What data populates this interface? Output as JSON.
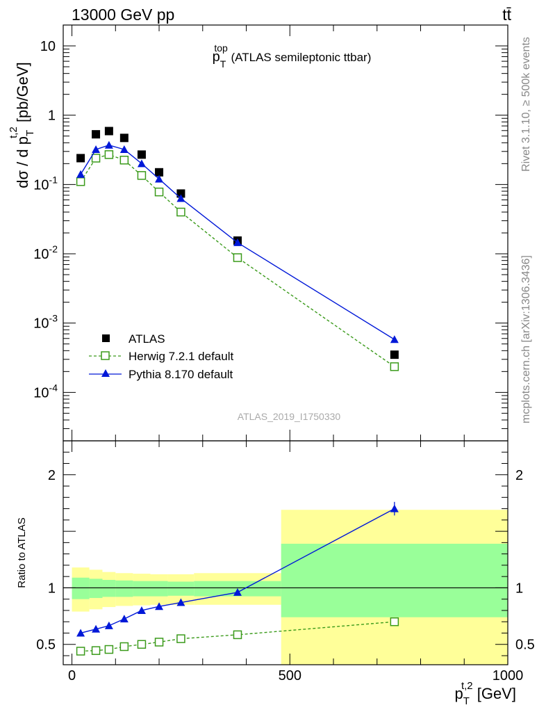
{
  "header": {
    "energy_label": "13000 GeV pp",
    "process_label": "tt̄"
  },
  "side_labels": {
    "rivet": "Rivet 3.1.10, ≥ 500k events",
    "mcplots": "mcplots.cern.ch [arXiv:1306.3436]"
  },
  "watermark": "ATLAS_2019_I1750330",
  "chart_data": [
    {
      "type": "scatter",
      "panel": "main",
      "title": {
        "p": "p",
        "sub": "T",
        "sup": "top",
        "rest": " (ATLAS semileptonic ttbar)"
      },
      "ylabel": {
        "prefix": "dσ / d p",
        "sub": "T",
        "sup": "t,2",
        "suffix": " [pb/GeV]"
      },
      "yscale": "log",
      "ylim": [
        2e-05,
        20
      ],
      "xlim": [
        -20,
        1000
      ],
      "ytick_labels": [
        {
          "value": 10,
          "base": "10",
          "exp": ""
        },
        {
          "value": 1,
          "base": "1",
          "exp": ""
        },
        {
          "value": 0.1,
          "base": "10",
          "exp": "-1"
        },
        {
          "value": 0.01,
          "base": "10",
          "exp": "-2"
        },
        {
          "value": 0.001,
          "base": "10",
          "exp": "-3"
        },
        {
          "value": 0.0001,
          "base": "10",
          "exp": "-4"
        }
      ],
      "legend_position": "bottom-left",
      "series": [
        {
          "name": "ATLAS",
          "marker": "square",
          "color": "#000000",
          "line": false,
          "x": [
            20,
            55,
            85,
            120,
            160,
            200,
            250,
            380,
            740
          ],
          "y": [
            0.24,
            0.53,
            0.59,
            0.47,
            0.27,
            0.15,
            0.074,
            0.0155,
            0.00035
          ]
        },
        {
          "name": "Herwig 7.2.1 default",
          "marker": "open-square",
          "color": "#3a9a1a",
          "line": "dashed",
          "x": [
            20,
            55,
            85,
            120,
            160,
            200,
            250,
            380,
            740
          ],
          "y": [
            0.11,
            0.24,
            0.27,
            0.225,
            0.135,
            0.078,
            0.04,
            0.0088,
            0.000235
          ]
        },
        {
          "name": "Pythia 8.170 default",
          "marker": "triangle",
          "color": "#0018d8",
          "line": "solid",
          "x": [
            20,
            55,
            85,
            120,
            160,
            200,
            250,
            380,
            740
          ],
          "y": [
            0.14,
            0.32,
            0.37,
            0.32,
            0.2,
            0.12,
            0.063,
            0.0145,
            0.00058
          ]
        }
      ]
    },
    {
      "type": "scatter",
      "panel": "ratio",
      "ylabel": "Ratio to ATLAS",
      "xlabel": {
        "p": "p",
        "sub": "T",
        "sup": "t,2",
        "suffix": " [GeV]"
      },
      "xlim": [
        -20,
        1000
      ],
      "ylim": [
        0.32,
        2.3
      ],
      "xtick_labels": [
        {
          "value": 0,
          "label": "0"
        },
        {
          "value": 500,
          "label": "500"
        },
        {
          "value": 1000,
          "label": "1000"
        }
      ],
      "ytick_labels": [
        {
          "value": 0.5,
          "label": "0.5"
        },
        {
          "value": 1,
          "label": "1"
        },
        {
          "value": 2,
          "label": "2"
        }
      ],
      "uncertainty_bands": [
        {
          "x0": 0,
          "x1": 40,
          "yellow": [
            0.79,
            1.18
          ],
          "green": [
            0.9,
            1.09
          ]
        },
        {
          "x0": 40,
          "x1": 70,
          "yellow": [
            0.81,
            1.16
          ],
          "green": [
            0.91,
            1.08
          ]
        },
        {
          "x0": 70,
          "x1": 100,
          "yellow": [
            0.83,
            1.14
          ],
          "green": [
            0.92,
            1.07
          ]
        },
        {
          "x0": 100,
          "x1": 140,
          "yellow": [
            0.84,
            1.13
          ],
          "green": [
            0.92,
            1.065
          ]
        },
        {
          "x0": 140,
          "x1": 180,
          "yellow": [
            0.845,
            1.125
          ],
          "green": [
            0.925,
            1.06
          ]
        },
        {
          "x0": 180,
          "x1": 220,
          "yellow": [
            0.85,
            1.12
          ],
          "green": [
            0.925,
            1.06
          ]
        },
        {
          "x0": 220,
          "x1": 280,
          "yellow": [
            0.85,
            1.12
          ],
          "green": [
            0.93,
            1.055
          ]
        },
        {
          "x0": 280,
          "x1": 480,
          "yellow": [
            0.85,
            1.13
          ],
          "green": [
            0.925,
            1.06
          ]
        },
        {
          "x0": 480,
          "x1": 1000,
          "yellow": [
            0.32,
            1.69
          ],
          "green": [
            0.74,
            1.39
          ]
        }
      ],
      "series": [
        {
          "name": "Herwig 7.2.1 default",
          "marker": "open-square",
          "color": "#3a9a1a",
          "line": "dashed",
          "x": [
            20,
            55,
            85,
            120,
            160,
            200,
            250,
            380,
            740
          ],
          "y": [
            0.44,
            0.445,
            0.455,
            0.48,
            0.5,
            0.52,
            0.55,
            0.585,
            0.7
          ],
          "err": [
            0.015,
            0.012,
            0.012,
            0.012,
            0.012,
            0.012,
            0.012,
            0.012,
            0.025
          ]
        },
        {
          "name": "Pythia 8.170 default",
          "marker": "triangle",
          "color": "#0018d8",
          "line": "solid",
          "x": [
            20,
            55,
            85,
            120,
            160,
            200,
            250,
            380,
            740
          ],
          "y": [
            0.6,
            0.635,
            0.665,
            0.725,
            0.8,
            0.835,
            0.87,
            0.96,
            1.7
          ],
          "err": [
            0.012,
            0.01,
            0.01,
            0.01,
            0.01,
            0.01,
            0.01,
            0.012,
            0.06
          ]
        }
      ]
    }
  ]
}
